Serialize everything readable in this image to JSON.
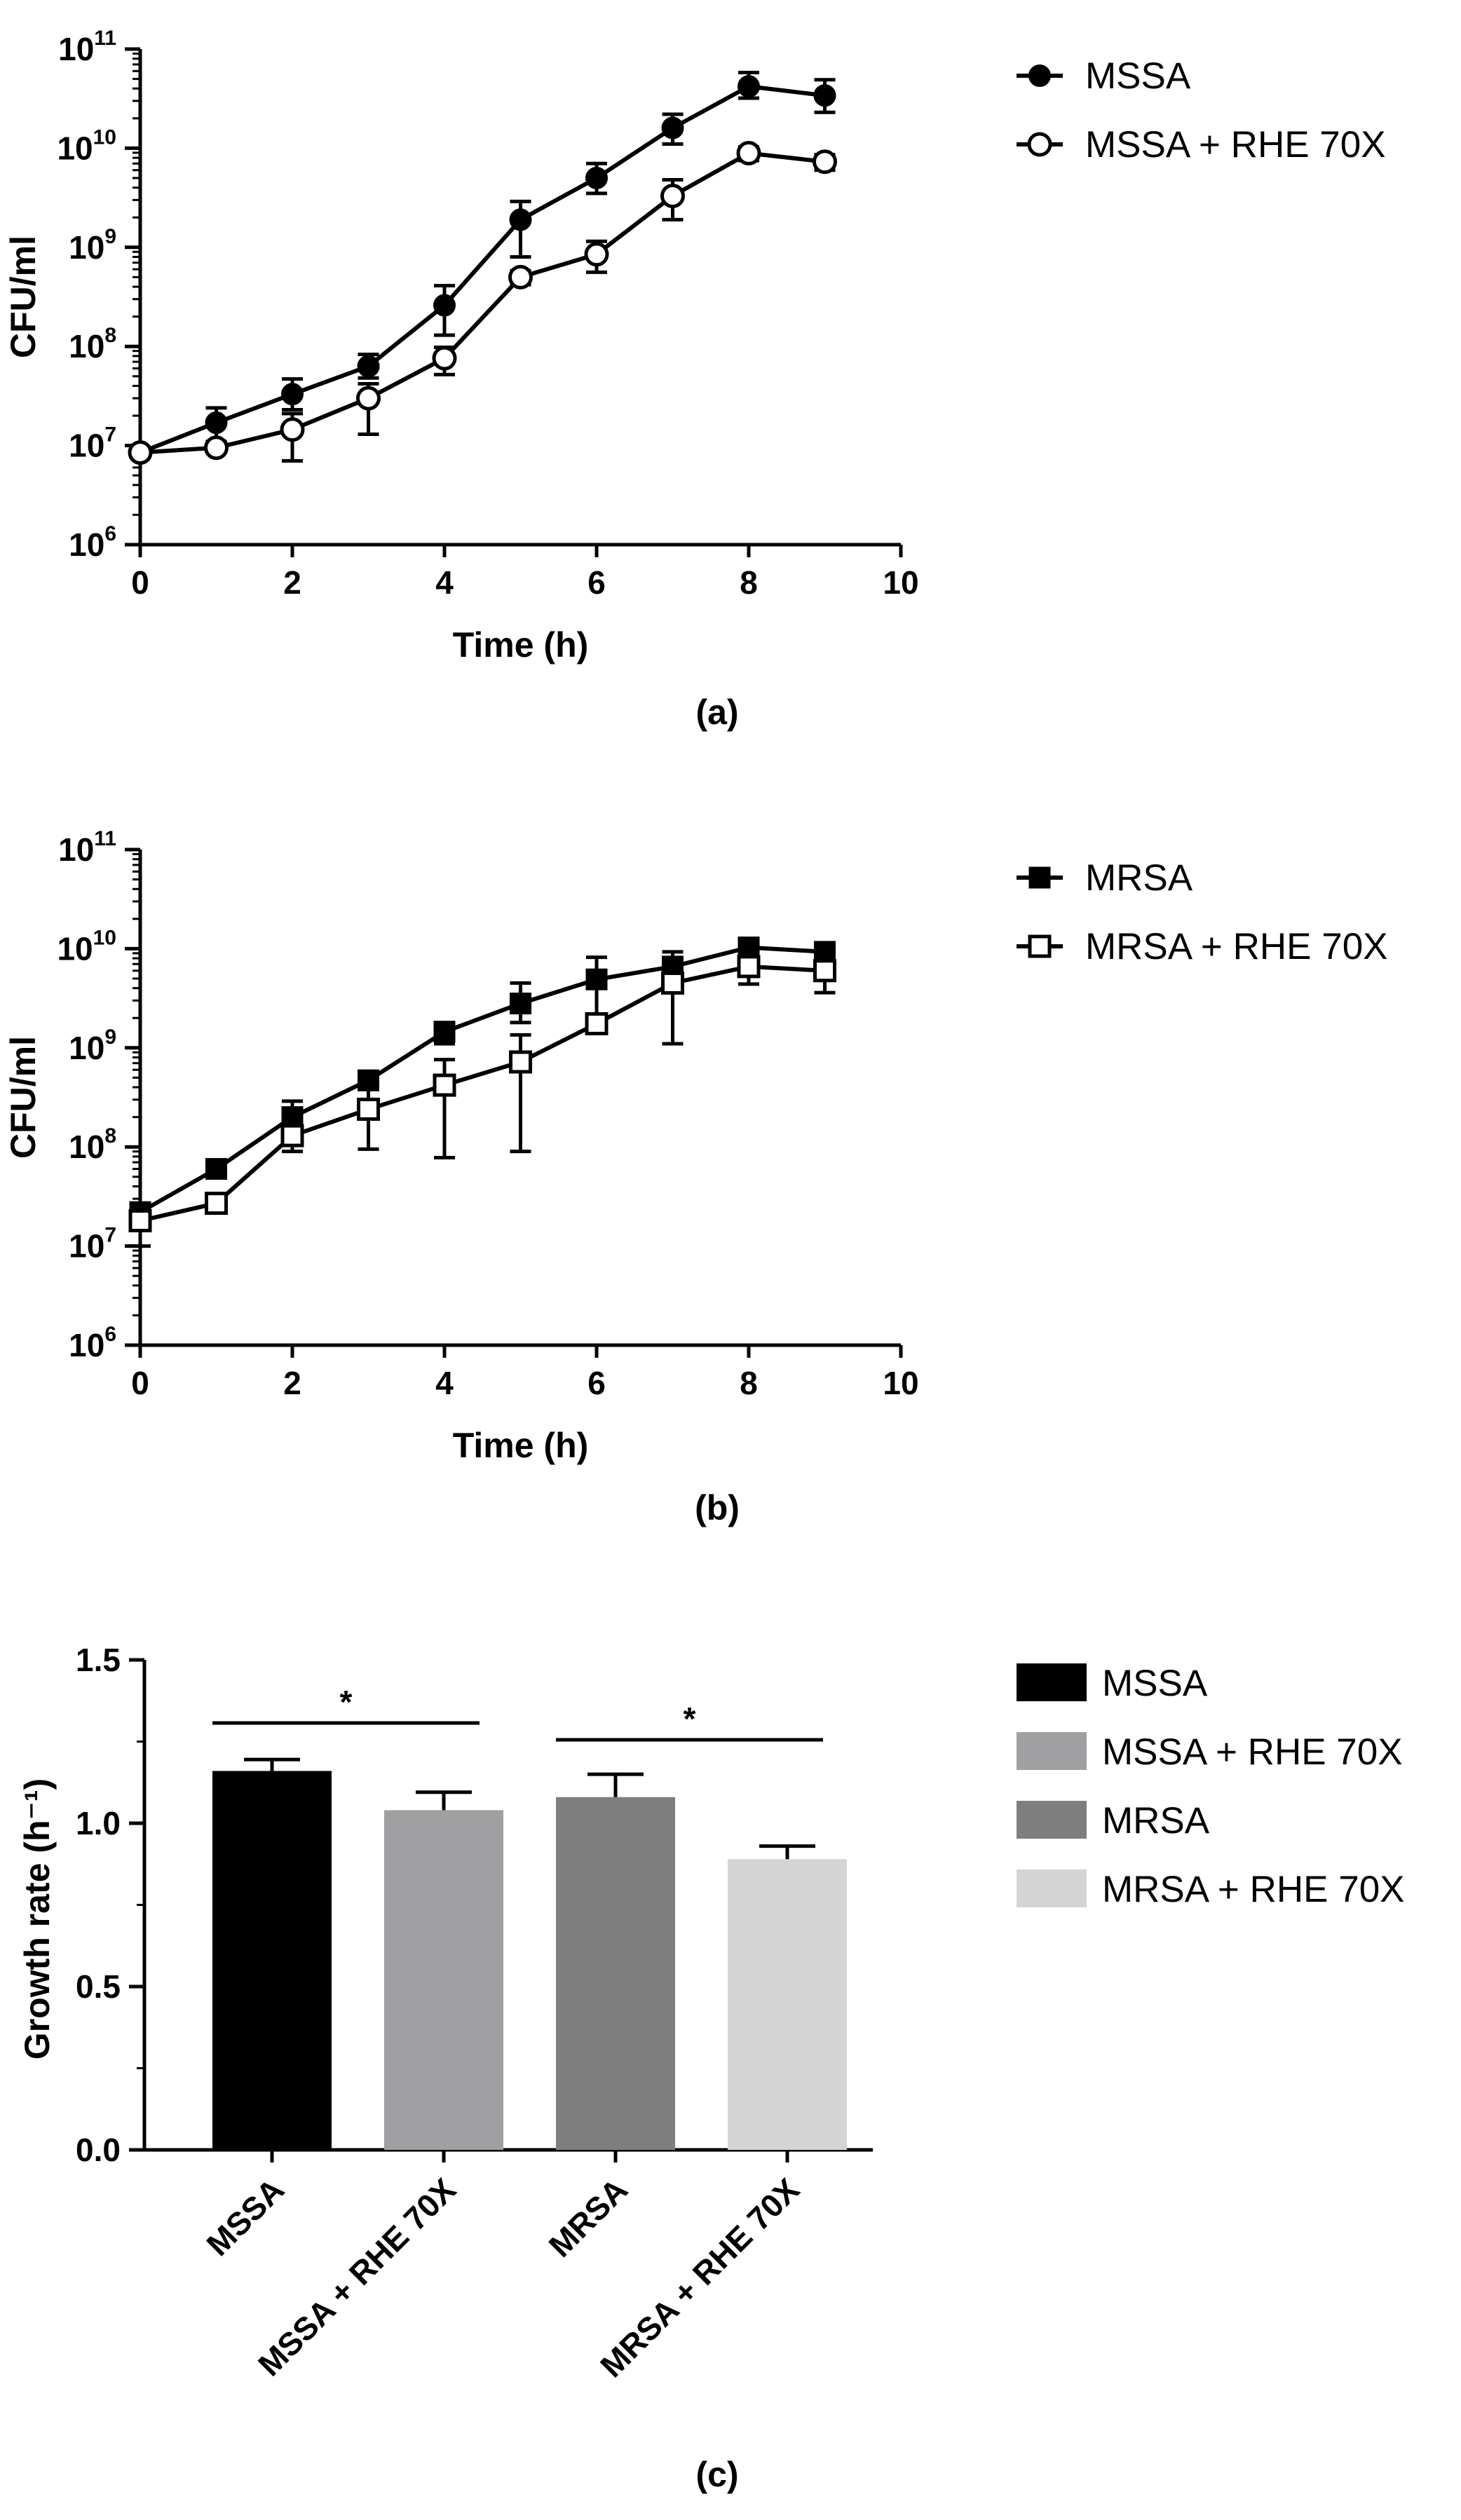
{
  "chart_data": [
    {
      "type": "line",
      "panel": "(a)",
      "xlabel": "Time (h)",
      "ylabel": "CFU/ml",
      "xlim": [
        0,
        10
      ],
      "xticks": [
        "0",
        "2",
        "4",
        "6",
        "8",
        "10"
      ],
      "y_scale": "log",
      "ylim": [
        1000000,
        100000000000
      ],
      "yticks": [
        {
          "base": "10",
          "exp": "6"
        },
        {
          "base": "10",
          "exp": "7"
        },
        {
          "base": "10",
          "exp": "8"
        },
        {
          "base": "10",
          "exp": "9"
        },
        {
          "base": "10",
          "exp": "10"
        },
        {
          "base": "10",
          "exp": "11"
        }
      ],
      "legend_position": "right",
      "series": [
        {
          "name": "MSSA",
          "marker": "filled-circle",
          "x": [
            0,
            1,
            2,
            3,
            4,
            5,
            6,
            7,
            8,
            9
          ],
          "y": [
            8500000,
            17000000,
            33000000,
            63000000,
            260000000,
            1900000000,
            5000000000,
            16000000000,
            42000000000,
            34000000000
          ],
          "error_low": [
            8000000,
            11000000,
            23000000,
            48000000,
            130000000,
            800000000,
            3500000000,
            11000000000,
            32000000000,
            23000000000
          ],
          "error_high": [
            9000000,
            24000000,
            47000000,
            83000000,
            410000000,
            2900000000,
            7000000000,
            22000000000,
            58000000000,
            49000000000
          ]
        },
        {
          "name": "MSSA + RHE 70X",
          "marker": "open-circle",
          "x": [
            0,
            1,
            2,
            3,
            4,
            5,
            6,
            7,
            8,
            9
          ],
          "y": [
            8500000,
            9500000,
            14500000,
            30000000,
            76000000,
            500000000,
            850000000,
            3300000000,
            8900000000,
            7300000000
          ],
          "error_low": [
            8000000,
            8500000,
            7000000,
            13000000,
            52000000,
            420000000,
            560000000,
            1900000000,
            7500000000,
            6000000000
          ],
          "error_high": [
            9000000,
            10500000,
            21000000,
            42000000,
            98000000,
            580000000,
            1150000000,
            4800000000,
            10300000000,
            8600000000
          ]
        }
      ]
    },
    {
      "type": "line",
      "panel": "(b)",
      "xlabel": "Time (h)",
      "ylabel": "CFU/ml",
      "xlim": [
        0,
        10
      ],
      "xticks": [
        "0",
        "2",
        "4",
        "6",
        "8",
        "10"
      ],
      "y_scale": "log",
      "ylim": [
        1000000,
        100000000000
      ],
      "yticks": [
        {
          "base": "10",
          "exp": "6"
        },
        {
          "base": "10",
          "exp": "7"
        },
        {
          "base": "10",
          "exp": "8"
        },
        {
          "base": "10",
          "exp": "9"
        },
        {
          "base": "10",
          "exp": "10"
        },
        {
          "base": "10",
          "exp": "11"
        }
      ],
      "legend_position": "right",
      "series": [
        {
          "name": "MRSA",
          "marker": "filled-square",
          "x": [
            0,
            1,
            2,
            3,
            4,
            5,
            6,
            7,
            8,
            9
          ],
          "y": [
            22000000,
            60000000,
            200000000,
            470000000,
            1450000000,
            2800000000,
            4900000000,
            6600000000,
            10300000000,
            9300000000
          ],
          "error_low": [
            17000000,
            55000000,
            140000000,
            400000000,
            1100000000,
            1800000000,
            2000000000,
            4400000000,
            9000000000,
            8000000000
          ],
          "error_high": [
            27000000,
            65000000,
            290000000,
            540000000,
            1800000000,
            4500000000,
            8200000000,
            9300000000,
            11600000000,
            10600000000
          ]
        },
        {
          "name": "MRSA + RHE 70X",
          "marker": "open-square",
          "x": [
            0,
            1,
            2,
            3,
            4,
            5,
            6,
            7,
            8,
            9
          ],
          "y": [
            18000000,
            27000000,
            130000000,
            240000000,
            420000000,
            720000000,
            1750000000,
            4500000000,
            6600000000,
            6000000000
          ],
          "error_low": [
            10000000,
            25000000,
            90000000,
            95000000,
            78000000,
            90000000,
            1500000000,
            1100000000,
            4400000000,
            3600000000
          ],
          "error_high": [
            26000000,
            29000000,
            170000000,
            380000000,
            760000000,
            1350000000,
            2000000000,
            7800000000,
            8800000000,
            8400000000
          ]
        }
      ]
    },
    {
      "type": "bar",
      "panel": "(c)",
      "ylabel": "Growth rate (h⁻¹)",
      "ylim": [
        0,
        1.5
      ],
      "yticks": [
        "0.0",
        "0.5",
        "1.0",
        "1.5"
      ],
      "categories": [
        "MSSA",
        "MSSA + RHE 70X",
        "MRSA",
        "MRSA + RHE 70X"
      ],
      "values": [
        1.16,
        1.04,
        1.08,
        0.89
      ],
      "error": [
        0.035,
        0.055,
        0.07,
        0.04
      ],
      "colors": [
        "#000000",
        "#a0a0a3",
        "#7f7f7f",
        "#d4d4d4"
      ],
      "significance": [
        {
          "from": 0,
          "to": 1,
          "label": "*"
        },
        {
          "from": 2,
          "to": 3,
          "label": "*"
        }
      ],
      "legend_position": "right",
      "legend": [
        "MSSA",
        "MSSA + RHE 70X",
        "MRSA",
        "MRSA + RHE 70X"
      ]
    }
  ]
}
